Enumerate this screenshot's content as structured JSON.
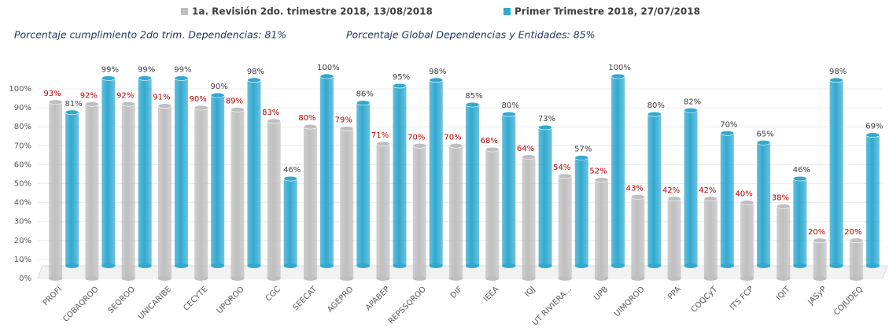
{
  "chart_data": {
    "type": "bar",
    "annotations": [
      "Porcentaje cumplimiento 2do trim. Dependencias: 81%",
      "Porcentaje Global Dependencias y Entidades: 85%"
    ],
    "categories": [
      "PROFI",
      "COBAQROO",
      "SEQROO",
      "UNICARIBE",
      "CECYTE",
      "UPQROO",
      "CGC",
      "SEECAT",
      "AGEPRO",
      "APABEP",
      "REPSSQROO",
      "DIF",
      "IEEA",
      "IQJ",
      "UT RIVIERA...",
      "UPB",
      "UIMQROO",
      "PPA",
      "COQCyT",
      "ITS FCP",
      "IQIT",
      "JASyP",
      "COJUDEQ"
    ],
    "series": [
      {
        "name": "1a. Revisión 2do. trimestre 2018, 13/08/2018",
        "color": "#bfbfbf",
        "label_color": "#c00000",
        "values": [
          93,
          92,
          92,
          91,
          90,
          89,
          83,
          80,
          79,
          71,
          70,
          70,
          68,
          64,
          54,
          52,
          43,
          42,
          42,
          40,
          38,
          20,
          20
        ],
        "value_labels": [
          "93%",
          "92%",
          "92%",
          "91%",
          "90%",
          "89%",
          "83%",
          "80%",
          "79%",
          "71%",
          "70%",
          "70%",
          "68%",
          "64%",
          "54%",
          "52%",
          "43%",
          "42%",
          "42%",
          "40%",
          "38%",
          "20%",
          "20%"
        ]
      },
      {
        "name": "Primer Trimestre 2018, 27/07/2018",
        "color": "#31a9d0",
        "label_color": "#404040",
        "values": [
          81,
          99,
          99,
          99,
          90,
          98,
          46,
          100,
          86,
          95,
          98,
          85,
          80,
          73,
          57,
          100,
          80,
          82,
          70,
          65,
          46,
          98,
          69
        ],
        "value_labels": [
          "81%",
          "99%",
          "99%",
          "99%",
          "90%",
          "98%",
          "46%",
          "100%",
          "86%",
          "95%",
          "98%",
          "85%",
          "80%",
          "73%",
          "57%",
          "100%",
          "80%",
          "82%",
          "70%",
          "65%",
          "46%",
          "98%",
          "69%"
        ]
      }
    ],
    "ylim": [
      0,
      100
    ],
    "yticks": [
      {
        "value": 0,
        "label": "0%"
      },
      {
        "value": 10,
        "label": "10%"
      },
      {
        "value": 20,
        "label": "20%"
      },
      {
        "value": 30,
        "label": "30%"
      },
      {
        "value": 40,
        "label": "40%"
      },
      {
        "value": 50,
        "label": "50%"
      },
      {
        "value": 60,
        "label": "60%"
      },
      {
        "value": 70,
        "label": "70%"
      },
      {
        "value": 80,
        "label": "80%"
      },
      {
        "value": 90,
        "label": "90%"
      },
      {
        "value": 100,
        "label": "100%"
      }
    ],
    "grid": true
  }
}
